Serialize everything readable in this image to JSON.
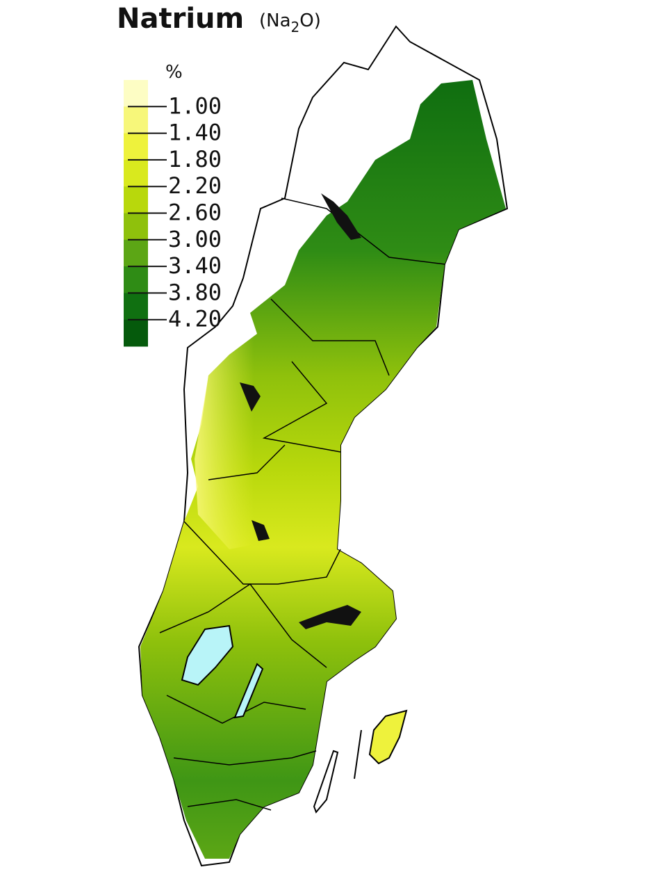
{
  "header": {
    "title": "Natrium",
    "formula": {
      "open": "(Na",
      "subscript": "2",
      "close": "O)"
    }
  },
  "legend": {
    "unit": "%",
    "colors": [
      "#fdfdc4",
      "#f7f77a",
      "#eef23c",
      "#d9e91e",
      "#b8d80c",
      "#8fc10c",
      "#5ca615",
      "#2f8c15",
      "#107011",
      "#055a0c"
    ],
    "labels": [
      "1.00",
      "1.40",
      "1.80",
      "2.20",
      "2.60",
      "3.00",
      "3.40",
      "3.80",
      "4.20"
    ]
  }
}
